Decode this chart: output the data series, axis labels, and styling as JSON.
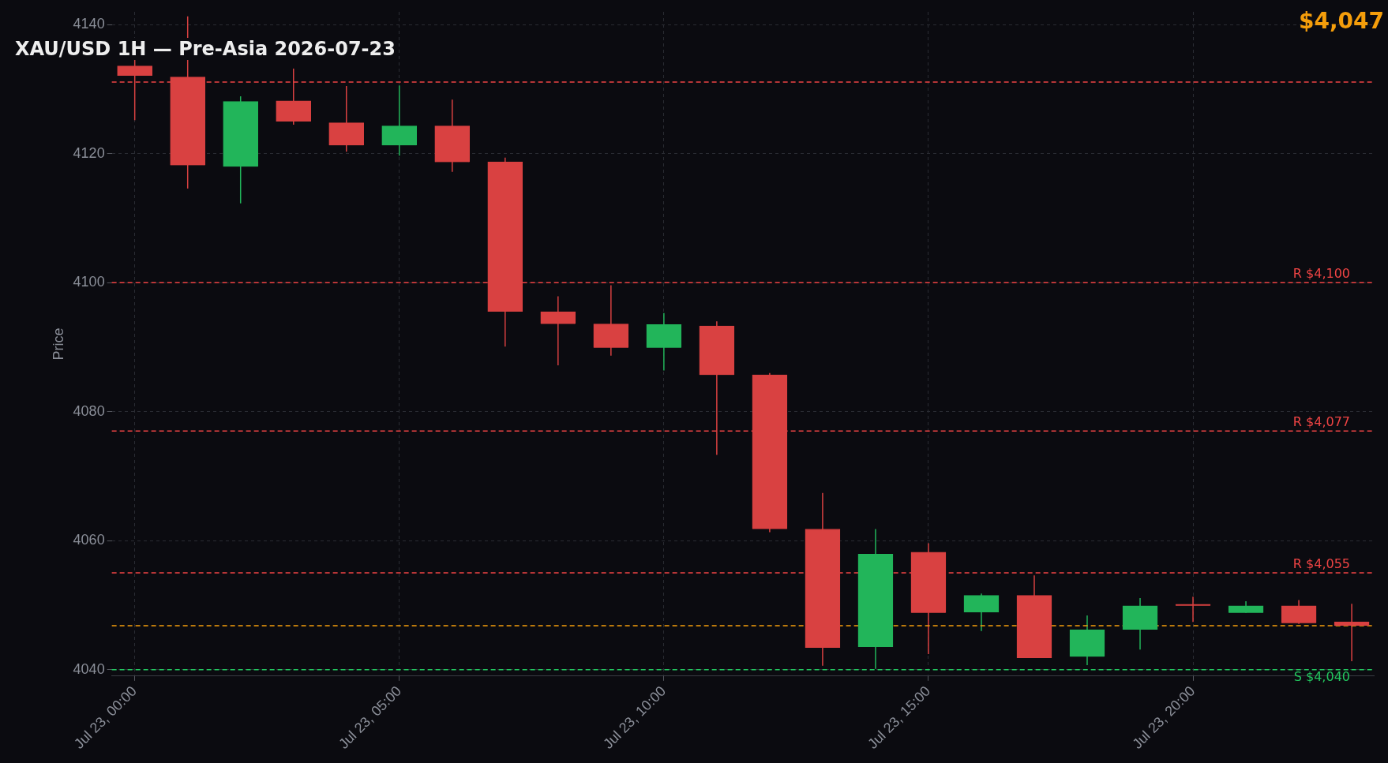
{
  "chart_data": {
    "type": "candlestick",
    "title": "XAU/USD 1H — Pre-Asia 2026-07-23",
    "ylabel": "Price",
    "x": [
      "2026-07-23T00:00",
      "2026-07-23T01:00",
      "2026-07-23T02:00",
      "2026-07-23T03:00",
      "2026-07-23T04:00",
      "2026-07-23T05:00",
      "2026-07-23T06:00",
      "2026-07-23T07:00",
      "2026-07-23T08:00",
      "2026-07-23T09:00",
      "2026-07-23T10:00",
      "2026-07-23T11:00",
      "2026-07-23T12:00",
      "2026-07-23T13:00",
      "2026-07-23T14:00",
      "2026-07-23T15:00",
      "2026-07-23T16:00",
      "2026-07-23T17:00",
      "2026-07-23T18:00",
      "2026-07-23T19:00",
      "2026-07-23T20:00",
      "2026-07-23T21:00",
      "2026-07-23T22:00",
      "2026-07-23T23:00"
    ],
    "ohlc": [
      [
        4133.6,
        4134.6,
        4125.2,
        4132.1
      ],
      [
        4131.9,
        4141.3,
        4114.6,
        4118.2
      ],
      [
        4118.0,
        4128.9,
        4112.3,
        4128.1
      ],
      [
        4128.2,
        4133.2,
        4124.5,
        4125.0
      ],
      [
        4124.8,
        4130.5,
        4120.3,
        4121.3
      ],
      [
        4121.3,
        4130.6,
        4119.7,
        4124.3
      ],
      [
        4124.3,
        4128.4,
        4117.2,
        4118.7
      ],
      [
        4118.7,
        4119.4,
        4090.1,
        4095.5
      ],
      [
        4095.5,
        4097.9,
        4087.2,
        4093.6
      ],
      [
        4093.6,
        4099.6,
        4088.7,
        4089.9
      ],
      [
        4089.9,
        4095.3,
        4086.4,
        4093.5
      ],
      [
        4093.3,
        4094.0,
        4073.3,
        4085.7
      ],
      [
        4085.7,
        4086.0,
        4061.3,
        4061.8
      ],
      [
        4061.8,
        4067.4,
        4040.6,
        4043.4
      ],
      [
        4043.5,
        4061.8,
        4040.1,
        4057.9
      ],
      [
        4058.2,
        4059.6,
        4042.4,
        4048.8
      ],
      [
        4048.9,
        4051.8,
        4046.0,
        4051.5
      ],
      [
        4051.5,
        4054.6,
        4041.8,
        4041.8
      ],
      [
        4042.0,
        4048.4,
        4040.7,
        4046.2
      ],
      [
        4046.2,
        4051.1,
        4043.1,
        4049.9
      ],
      [
        4050.1,
        4051.3,
        4047.4,
        4049.9
      ],
      [
        4048.8,
        4050.6,
        4048.8,
        4049.9
      ],
      [
        4049.9,
        4050.8,
        4047.1,
        4047.2
      ],
      [
        4047.4,
        4050.2,
        4041.3,
        4046.8
      ]
    ],
    "colors": [
      "#d94141",
      "#d94141",
      "#22b55a",
      "#d94141",
      "#d94141",
      "#22b55a",
      "#d94141",
      "#d94141",
      "#d94141",
      "#d94141",
      "#22b55a",
      "#d94141",
      "#d94141",
      "#d94141",
      "#22b55a",
      "#d94141",
      "#22b55a",
      "#d94141",
      "#22b55a",
      "#22b55a",
      "#d94141",
      "#22b55a",
      "#d94141",
      "#d94141"
    ],
    "xlim": [
      "2026-07-22T23:34",
      "2026-07-23T23:25"
    ],
    "xticks": [
      {
        "value": "2026-07-23T00:00",
        "label": "Jul 23, 00:00"
      },
      {
        "value": "2026-07-23T05:00",
        "label": "Jul 23, 05:00"
      },
      {
        "value": "2026-07-23T10:00",
        "label": "Jul 23, 10:00"
      },
      {
        "value": "2026-07-23T15:00",
        "label": "Jul 23, 15:00"
      },
      {
        "value": "2026-07-23T20:00",
        "label": "Jul 23, 20:00"
      }
    ],
    "ylim": [
      4039,
      4142
    ],
    "yticks": [
      4040,
      4060,
      4080,
      4100,
      4120,
      4140
    ],
    "grid": true,
    "legend": false,
    "ref_lines": [
      {
        "axis": "y",
        "value": 4131.1,
        "label": null,
        "color": "#ef4444",
        "line_style": "dashed"
      },
      {
        "axis": "y",
        "value": 4100,
        "label": "R $4,100",
        "color": "#ef4444",
        "line_style": "dashed"
      },
      {
        "axis": "y",
        "value": 4077,
        "label": "R $4,077",
        "color": "#ef4444",
        "line_style": "dashed"
      },
      {
        "axis": "y",
        "value": 4055,
        "label": "R $4,055",
        "color": "#ef4444",
        "line_style": "dashed"
      },
      {
        "axis": "y",
        "value": 4046.8,
        "label": null,
        "color": "#f59e0b",
        "line_style": "dashed"
      },
      {
        "axis": "y",
        "value": 4040,
        "label": "S $4,040",
        "color": "#22c55e",
        "line_style": "dashed"
      }
    ],
    "annotations": [
      "$4,047"
    ]
  }
}
